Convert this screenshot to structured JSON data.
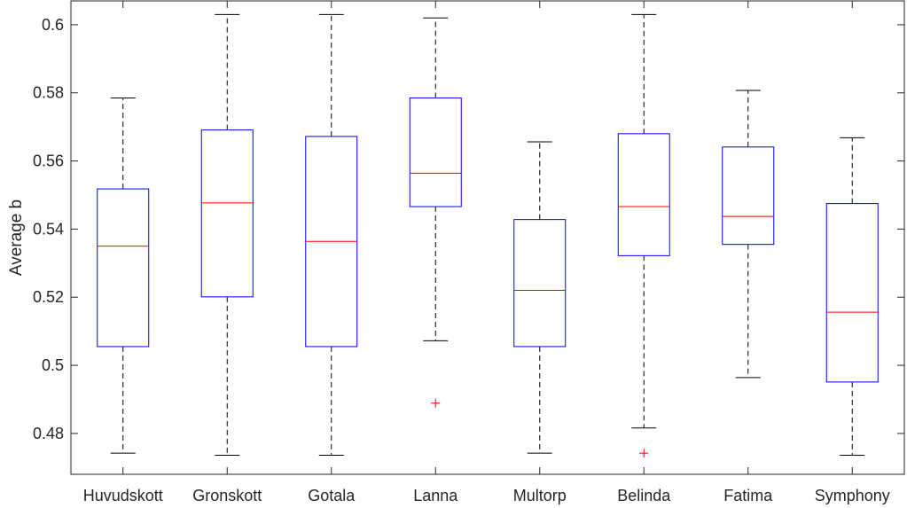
{
  "chart_data": {
    "type": "box",
    "title": "",
    "xlabel": "",
    "ylabel": "Average b",
    "ylim": [
      0.468,
      0.607
    ],
    "yticks": [
      0.48,
      0.5,
      0.52,
      0.54,
      0.56,
      0.58,
      0.6
    ],
    "ytick_labels": [
      "0.48",
      "0.5",
      "0.52",
      "0.54",
      "0.56",
      "0.58",
      "0.6"
    ],
    "categories": [
      "Huvudskott",
      "Gronskott",
      "Gotala",
      "Lanna",
      "Multorp",
      "Belinda",
      "Fatima",
      "Symphony"
    ],
    "boxes": [
      {
        "whisker_low": 0.4742,
        "q1": 0.5055,
        "median": 0.535,
        "q3": 0.5518,
        "whisker_high": 0.5785,
        "outliers": []
      },
      {
        "whisker_low": 0.4736,
        "q1": 0.5201,
        "median": 0.5477,
        "q3": 0.5691,
        "whisker_high": 0.603,
        "outliers": []
      },
      {
        "whisker_low": 0.4736,
        "q1": 0.5055,
        "median": 0.5364,
        "q3": 0.5672,
        "whisker_high": 0.603,
        "outliers": []
      },
      {
        "whisker_low": 0.5072,
        "q1": 0.5466,
        "median": 0.5564,
        "q3": 0.5785,
        "whisker_high": 0.602,
        "outliers": [
          0.4889
        ]
      },
      {
        "whisker_low": 0.4742,
        "q1": 0.5055,
        "median": 0.522,
        "q3": 0.5428,
        "whisker_high": 0.5656,
        "outliers": []
      },
      {
        "whisker_low": 0.4816,
        "q1": 0.5322,
        "median": 0.5466,
        "q3": 0.568,
        "whisker_high": 0.603,
        "outliers": [
          0.4742
        ]
      },
      {
        "whisker_low": 0.4964,
        "q1": 0.5355,
        "median": 0.5437,
        "q3": 0.5641,
        "whisker_high": 0.5807,
        "outliers": []
      },
      {
        "whisker_low": 0.4736,
        "q1": 0.4951,
        "median": 0.5156,
        "q3": 0.5475,
        "whisker_high": 0.5668,
        "outliers": []
      }
    ],
    "grid": false,
    "legend": "none",
    "colors": {
      "box": "#0000ff",
      "median": "#ff0000",
      "whisker": "#000000",
      "outlier": "#ff0000",
      "axis": "#262626"
    }
  }
}
